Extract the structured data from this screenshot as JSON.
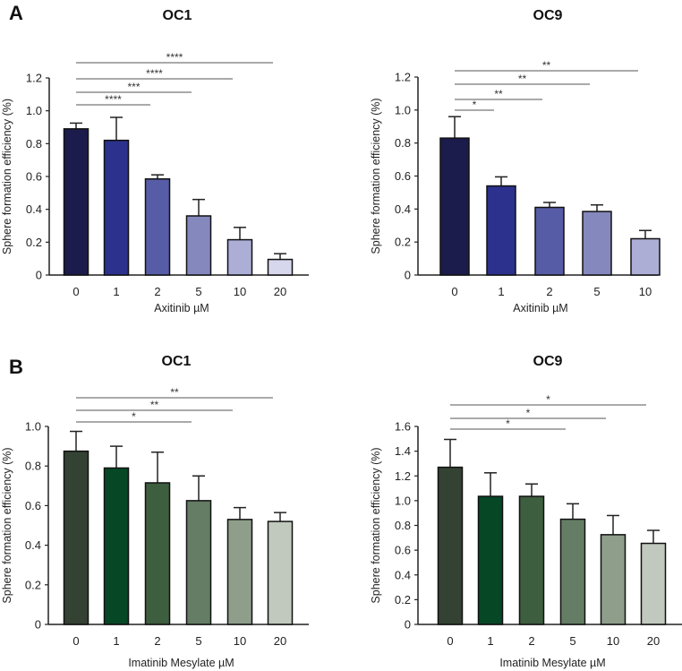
{
  "panel_labels": [
    "A",
    "B"
  ],
  "chart_data": [
    {
      "type": "bar",
      "panel": "A",
      "title": "OC1",
      "xlabel": "Axitinib µM",
      "ylabel": "Sphere formation efficiency (%)",
      "ylim": [
        0,
        1.2
      ],
      "yticks": [
        "0",
        "0.2",
        "0.4",
        "0.6",
        "0.8",
        "1.0",
        "1.2"
      ],
      "ytick_values": [
        0,
        0.2,
        0.4,
        0.6,
        0.8,
        1.0,
        1.2
      ],
      "categories": [
        "0",
        "1",
        "2",
        "5",
        "10",
        "20"
      ],
      "values": [
        0.89,
        0.82,
        0.585,
        0.36,
        0.215,
        0.095
      ],
      "errors": [
        0.035,
        0.14,
        0.025,
        0.1,
        0.075,
        0.035
      ],
      "colors": [
        "#1b1c4b",
        "#2b318c",
        "#575ca6",
        "#8488bd",
        "#acaed6",
        "#d6d7ec"
      ],
      "significance": [
        {
          "from": "0",
          "to": "20",
          "label": "****"
        },
        {
          "from": "0",
          "to": "10",
          "label": "****"
        },
        {
          "from": "0",
          "to": "5",
          "label": "***"
        },
        {
          "from": "0",
          "to": "2",
          "label": "****"
        }
      ]
    },
    {
      "type": "bar",
      "panel": "",
      "title": "OC9",
      "xlabel": "Axitinib µM",
      "ylabel": "Sphere formation efficiency (%)",
      "ylim": [
        0,
        1.2
      ],
      "yticks": [
        "0",
        "0.2",
        "0.4",
        "0.6",
        "0.8",
        "1.0",
        "1.2"
      ],
      "ytick_values": [
        0,
        0.2,
        0.4,
        0.6,
        0.8,
        1.0,
        1.2
      ],
      "categories": [
        "0",
        "1",
        "2",
        "5",
        "10"
      ],
      "values": [
        0.83,
        0.54,
        0.41,
        0.385,
        0.22
      ],
      "errors": [
        0.13,
        0.055,
        0.03,
        0.04,
        0.05
      ],
      "colors": [
        "#1b1c4b",
        "#2b318c",
        "#575ca6",
        "#8488bd",
        "#acaed6"
      ],
      "significance": [
        {
          "from": "0",
          "to": "10",
          "label": "**"
        },
        {
          "from": "0",
          "to": "5",
          "label": "**"
        },
        {
          "from": "0",
          "to": "2",
          "label": "**"
        },
        {
          "from": "0",
          "to": "1",
          "label": "*"
        }
      ]
    },
    {
      "type": "bar",
      "panel": "B",
      "title": "OC1",
      "xlabel": "Imatinib Mesylate µM",
      "ylabel": "Sphere formation efficiency (%)",
      "ylim": [
        0,
        1.0
      ],
      "yticks": [
        "0",
        "0.2",
        "0.4",
        "0.6",
        "0.8",
        "1.0"
      ],
      "ytick_values": [
        0,
        0.2,
        0.4,
        0.6,
        0.8,
        1.0
      ],
      "categories": [
        "0",
        "1",
        "2",
        "5",
        "10",
        "20"
      ],
      "values": [
        0.875,
        0.79,
        0.715,
        0.625,
        0.53,
        0.52
      ],
      "errors": [
        0.1,
        0.11,
        0.155,
        0.125,
        0.06,
        0.045
      ],
      "colors": [
        "#344233",
        "#064726",
        "#3d5e3f",
        "#647d64",
        "#8e9e8b",
        "#c1c9be"
      ],
      "significance": [
        {
          "from": "0",
          "to": "20",
          "label": "**"
        },
        {
          "from": "0",
          "to": "10",
          "label": "**"
        },
        {
          "from": "0",
          "to": "5",
          "label": "*"
        }
      ]
    },
    {
      "type": "bar",
      "panel": "",
      "title": "OC9",
      "xlabel": "Imatinib Mesylate µM",
      "ylabel": "Sphere formation efficiency (%)",
      "ylim": [
        0,
        1.6
      ],
      "yticks": [
        "0",
        "0.2",
        "0.4",
        "0.6",
        "0.8",
        "1.0",
        "1.2",
        "1.4",
        "1.6"
      ],
      "ytick_values": [
        0,
        0.2,
        0.4,
        0.6,
        0.8,
        1.0,
        1.2,
        1.4,
        1.6
      ],
      "categories": [
        "0",
        "1",
        "2",
        "5",
        "10",
        "20"
      ],
      "values": [
        1.27,
        1.035,
        1.035,
        0.85,
        0.725,
        0.655
      ],
      "errors": [
        0.225,
        0.19,
        0.1,
        0.125,
        0.155,
        0.105
      ],
      "colors": [
        "#344233",
        "#064726",
        "#3d5e3f",
        "#647d64",
        "#8e9e8b",
        "#c1c9be"
      ],
      "significance": [
        {
          "from": "0",
          "to": "20",
          "label": "*"
        },
        {
          "from": "0",
          "to": "10",
          "label": "*"
        },
        {
          "from": "0",
          "to": "5",
          "label": "*"
        }
      ]
    }
  ]
}
